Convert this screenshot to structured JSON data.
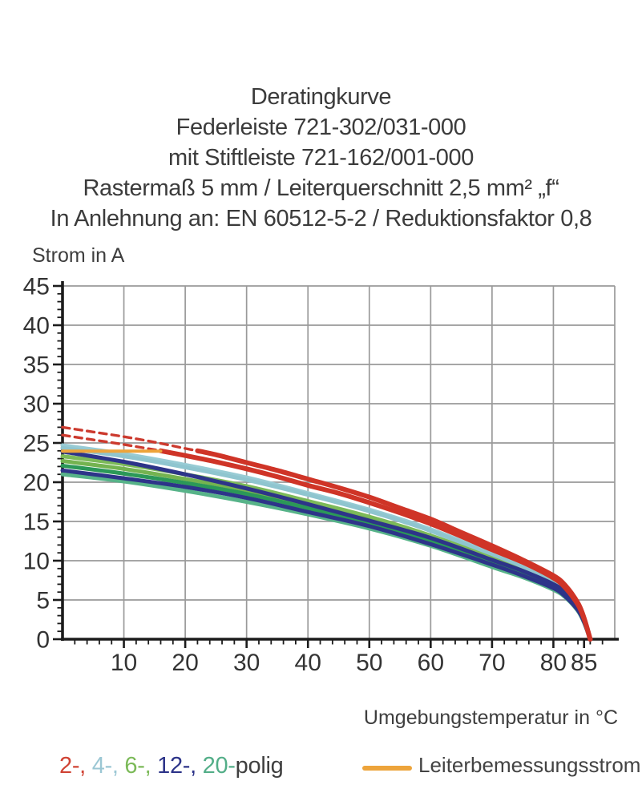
{
  "title": {
    "lines": [
      "Deratingkurve",
      "Federleiste 721-302/031-000",
      "mit Stiftleiste 721-162/001-000",
      "Rastermaß 5 mm / Leiterquerschnitt 2,5 mm² „f“",
      "In Anlehnung an: EN 60512-5-2 / Reduktionsfaktor 0,8"
    ]
  },
  "legend": {
    "poles_parts": [
      {
        "text": "2-,",
        "color": "#d04334"
      },
      {
        "text": " 4-,",
        "color": "#9bc7d4"
      },
      {
        "text": " 6-,",
        "color": "#7cba59"
      },
      {
        "text": " 12-,",
        "color": "#2d3489"
      },
      {
        "text": " 20-",
        "color": "#53ae88"
      },
      {
        "text": "polig",
        "color": "#3f3f3f"
      }
    ],
    "rated": {
      "label": "Leiterbemessungsstrom",
      "color": "#eda43b"
    }
  },
  "chart_data": {
    "type": "line",
    "title": "Deratingkurve",
    "xlabel": "Umgebungstemperatur in °C",
    "ylabel": "Strom in A",
    "xlim": [
      0,
      90
    ],
    "ylim": [
      0,
      45
    ],
    "grid": true,
    "grid_color": "#9a9a9a",
    "axis_color": "#1c1c1c",
    "tick_label_color": "#333333",
    "x_ticks_major": [
      10,
      20,
      30,
      40,
      50,
      60,
      70,
      80,
      85
    ],
    "x_gridlines": [
      10,
      20,
      30,
      40,
      50,
      60,
      70,
      80,
      90
    ],
    "x_minor_step": 2,
    "x_minor_max": 88,
    "y_ticks_major": [
      0,
      5,
      10,
      15,
      20,
      25,
      30,
      35,
      40,
      45
    ],
    "y_gridlines": [
      5,
      10,
      15,
      20,
      25,
      30,
      35,
      40,
      45
    ],
    "y_minor_step": 1,
    "series": [
      {
        "id": "12-polig-dashed",
        "pole": "12",
        "style": "dashed",
        "color": "#2d3489",
        "width": 3,
        "points": [
          [
            0,
            24.5
          ],
          [
            6,
            24.15
          ]
        ]
      },
      {
        "id": "2-polig-dashed-a",
        "pole": "2",
        "style": "dashed",
        "color": "#cc3a2e",
        "width": 3.4,
        "points": [
          [
            0,
            27
          ],
          [
            5,
            26.4
          ],
          [
            10,
            25.8
          ],
          [
            15,
            25.1
          ],
          [
            20,
            24.3
          ],
          [
            22,
            24
          ]
        ]
      },
      {
        "id": "2-polig-dashed-b",
        "pole": "2",
        "style": "dashed",
        "color": "#cc3a2e",
        "width": 3.4,
        "points": [
          [
            0,
            26
          ],
          [
            5,
            25.4
          ],
          [
            10,
            24.8
          ],
          [
            13,
            24.4
          ],
          [
            16,
            24
          ]
        ]
      },
      {
        "id": "4-polig-a",
        "pole": "4",
        "style": "solid",
        "color": "#98cbd4",
        "width": 5,
        "points": [
          [
            0,
            24.7
          ],
          [
            10,
            23.6
          ],
          [
            20,
            22.2
          ],
          [
            30,
            20.6
          ],
          [
            40,
            18.6
          ],
          [
            50,
            16.5
          ],
          [
            60,
            14
          ],
          [
            70,
            10.9
          ],
          [
            75,
            9.3
          ],
          [
            80,
            7.4
          ],
          [
            82,
            6.2
          ],
          [
            84,
            4.2
          ],
          [
            85,
            2.5
          ],
          [
            86,
            0
          ]
        ]
      },
      {
        "id": "4-polig-b",
        "pole": "4",
        "style": "solid",
        "color": "#8fc5cf",
        "width": 5,
        "points": [
          [
            0,
            24.35
          ],
          [
            10,
            23.3
          ],
          [
            20,
            21.9
          ],
          [
            30,
            20.3
          ],
          [
            40,
            18.4
          ],
          [
            50,
            16.3
          ],
          [
            60,
            13.8
          ],
          [
            70,
            10.7
          ],
          [
            75,
            9.1
          ],
          [
            80,
            7.3
          ],
          [
            82,
            6.1
          ],
          [
            84,
            4.1
          ],
          [
            85,
            2.4
          ],
          [
            86,
            0
          ]
        ]
      },
      {
        "id": "6-polig-a",
        "pole": "6",
        "style": "solid",
        "color": "#7cba59",
        "width": 5,
        "points": [
          [
            0,
            23.3
          ],
          [
            10,
            22.3
          ],
          [
            20,
            21
          ],
          [
            30,
            19.5
          ],
          [
            40,
            17.6
          ],
          [
            50,
            15.6
          ],
          [
            60,
            13.2
          ],
          [
            70,
            10.3
          ],
          [
            75,
            8.7
          ],
          [
            80,
            7
          ],
          [
            82,
            5.8
          ],
          [
            84,
            4
          ],
          [
            85,
            2.3
          ],
          [
            86,
            0
          ]
        ]
      },
      {
        "id": "6-polig-b",
        "pole": "6",
        "style": "solid",
        "color": "#74b350",
        "width": 5,
        "points": [
          [
            0,
            22.7
          ],
          [
            10,
            21.7
          ],
          [
            20,
            20.4
          ],
          [
            30,
            19
          ],
          [
            40,
            17.1
          ],
          [
            50,
            15.2
          ],
          [
            60,
            12.8
          ],
          [
            70,
            10
          ],
          [
            75,
            8.5
          ],
          [
            80,
            6.8
          ],
          [
            82,
            5.7
          ],
          [
            84,
            3.9
          ],
          [
            85,
            2.3
          ],
          [
            86,
            0
          ]
        ]
      },
      {
        "id": "20-polig-a",
        "pole": "20",
        "style": "solid",
        "color": "#2b9858",
        "width": 5,
        "points": [
          [
            0,
            22.1
          ],
          [
            10,
            21.1
          ],
          [
            20,
            19.9
          ],
          [
            30,
            18.5
          ],
          [
            40,
            16.7
          ],
          [
            50,
            14.8
          ],
          [
            60,
            12.5
          ],
          [
            70,
            9.7
          ],
          [
            75,
            8.3
          ],
          [
            80,
            6.6
          ],
          [
            82,
            5.5
          ],
          [
            84,
            3.8
          ],
          [
            85,
            2.2
          ],
          [
            86,
            0
          ]
        ]
      },
      {
        "id": "20-polig-b",
        "pole": "20",
        "style": "solid",
        "color": "#57b389",
        "width": 5,
        "points": [
          [
            0,
            21
          ],
          [
            10,
            20.1
          ],
          [
            20,
            18.9
          ],
          [
            30,
            17.5
          ],
          [
            40,
            15.9
          ],
          [
            50,
            14.1
          ],
          [
            60,
            11.9
          ],
          [
            70,
            9.2
          ],
          [
            75,
            7.9
          ],
          [
            80,
            6.3
          ],
          [
            82,
            5.3
          ],
          [
            84,
            3.6
          ],
          [
            85,
            2.1
          ],
          [
            86,
            0
          ]
        ]
      },
      {
        "id": "12-polig-a",
        "pole": "12",
        "style": "solid",
        "color": "#2d3489",
        "width": 5,
        "points": [
          [
            0,
            23.9
          ],
          [
            10,
            22.6
          ],
          [
            20,
            21
          ],
          [
            30,
            19.2
          ],
          [
            40,
            17.2
          ],
          [
            50,
            15.1
          ],
          [
            60,
            12.9
          ],
          [
            70,
            10.1
          ],
          [
            75,
            8.7
          ],
          [
            80,
            7
          ],
          [
            82,
            5.9
          ],
          [
            84,
            4
          ],
          [
            85,
            2.4
          ],
          [
            86,
            0
          ]
        ]
      },
      {
        "id": "12-polig-b",
        "pole": "12",
        "style": "solid",
        "color": "#2d3489",
        "width": 5,
        "points": [
          [
            0,
            21.5
          ],
          [
            10,
            20.5
          ],
          [
            20,
            19.4
          ],
          [
            30,
            18
          ],
          [
            40,
            16.2
          ],
          [
            50,
            14.4
          ],
          [
            60,
            12.1
          ],
          [
            70,
            9.5
          ],
          [
            75,
            8.1
          ],
          [
            80,
            6.5
          ],
          [
            82,
            5.4
          ],
          [
            84,
            3.7
          ],
          [
            85,
            2.2
          ],
          [
            86,
            0
          ]
        ]
      },
      {
        "id": "2-polig-a",
        "pole": "2",
        "style": "solid",
        "color": "#cf3427",
        "width": 6,
        "points": [
          [
            16,
            24
          ],
          [
            20,
            23.4
          ],
          [
            25,
            22.6
          ],
          [
            30,
            21.7
          ],
          [
            35,
            20.7
          ],
          [
            40,
            19.6
          ],
          [
            45,
            18.6
          ],
          [
            50,
            17.4
          ],
          [
            55,
            16.1
          ],
          [
            60,
            14.7
          ],
          [
            65,
            13.1
          ],
          [
            70,
            11.4
          ],
          [
            75,
            9.8
          ],
          [
            80,
            7.8
          ],
          [
            82,
            6.5
          ],
          [
            84,
            4.4
          ],
          [
            85,
            2.6
          ],
          [
            86,
            0
          ]
        ]
      },
      {
        "id": "2-polig-b",
        "pole": "2",
        "style": "solid",
        "color": "#cf3427",
        "width": 6,
        "points": [
          [
            22,
            24
          ],
          [
            25,
            23.5
          ],
          [
            30,
            22.5
          ],
          [
            35,
            21.5
          ],
          [
            40,
            20.4
          ],
          [
            45,
            19.3
          ],
          [
            50,
            18.1
          ],
          [
            55,
            16.7
          ],
          [
            60,
            15.3
          ],
          [
            65,
            13.6
          ],
          [
            70,
            11.9
          ],
          [
            75,
            10.1
          ],
          [
            80,
            8.1
          ],
          [
            82,
            6.8
          ],
          [
            84,
            4.6
          ],
          [
            85,
            2.7
          ],
          [
            86,
            0
          ]
        ]
      },
      {
        "id": "rated-current",
        "label": "Leiterbemessungsstrom",
        "style": "solid",
        "color": "#eda43b",
        "width": 4,
        "points": [
          [
            0,
            23.95
          ],
          [
            16,
            23.95
          ]
        ]
      }
    ]
  }
}
